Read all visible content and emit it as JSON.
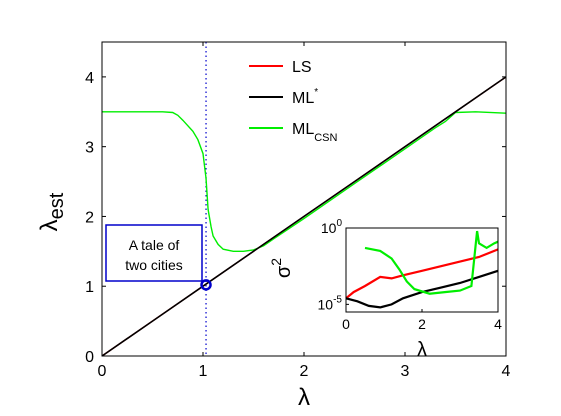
{
  "chart_data": [
    {
      "type": "line",
      "xlabel": "λ",
      "ylabel": "λ",
      "ylabel_sub": "est",
      "xlim": [
        0,
        4
      ],
      "ylim": [
        0,
        4.5
      ],
      "xticks": [
        "0",
        "1",
        "2",
        "3",
        "4"
      ],
      "yticks": [
        "0",
        "1",
        "2",
        "3",
        "4"
      ],
      "grid": false,
      "legend_placement": "top-center",
      "reference_line": {
        "x": 1.03,
        "style": "dotted",
        "color": "#0000cc"
      },
      "annotation": {
        "line1": "A tale of",
        "line2": "two cities",
        "marker_x": 1.03,
        "marker_y": 1.02,
        "color": "#0000cc"
      },
      "series": [
        {
          "name": "LS",
          "color": "#ff0000",
          "x": [
            0,
            0.5,
            1,
            1.5,
            2,
            2.5,
            3,
            3.5,
            4
          ],
          "y": [
            0,
            0.5,
            1.0,
            1.5,
            2.0,
            2.5,
            3.0,
            3.5,
            4.0
          ]
        },
        {
          "name": "ML",
          "name_sup": "*",
          "color": "#000000",
          "x": [
            0,
            0.5,
            1,
            1.5,
            2,
            2.5,
            3,
            3.5,
            4
          ],
          "y": [
            0,
            0.5,
            1.0,
            1.5,
            2.0,
            2.5,
            3.0,
            3.5,
            4.0
          ]
        },
        {
          "name": "ML",
          "name_sub": "CSN",
          "color": "#00ee00",
          "x": [
            0,
            0.6,
            0.7,
            0.75,
            0.8,
            0.85,
            0.9,
            0.95,
            1.0,
            1.03,
            1.05,
            1.08,
            1.1,
            1.15,
            1.2,
            1.3,
            1.4,
            1.5,
            1.6,
            1.7,
            2.0,
            2.5,
            3.0,
            3.3,
            3.4,
            3.5,
            3.7,
            4.0
          ],
          "y": [
            3.5,
            3.5,
            3.49,
            3.45,
            3.38,
            3.3,
            3.22,
            3.1,
            2.9,
            2.55,
            2.1,
            1.85,
            1.72,
            1.6,
            1.53,
            1.5,
            1.5,
            1.52,
            1.58,
            1.68,
            1.97,
            2.47,
            2.97,
            3.27,
            3.36,
            3.49,
            3.5,
            3.48
          ]
        }
      ]
    },
    {
      "type": "line",
      "role": "inset",
      "placement": "bottom-right",
      "xlabel": "λ",
      "ylabel": "σ",
      "ylabel_sup": "2",
      "xlim": [
        0,
        4
      ],
      "ylim_log10": [
        -5.5,
        0
      ],
      "yscale": "log",
      "xticks": [
        "0",
        "2",
        "4"
      ],
      "ytick_base": "10",
      "ytick_exponents": [
        "0",
        "-5"
      ],
      "grid": false,
      "series": [
        {
          "name": "LS",
          "color": "#ff0000",
          "x": [
            0,
            0.2,
            0.5,
            0.9,
            1.2,
            1.5,
            2.0,
            2.5,
            3.0,
            3.5,
            4.0
          ],
          "log10_y": [
            -4.6,
            -4.2,
            -3.8,
            -3.2,
            -3.3,
            -3.1,
            -2.8,
            -2.5,
            -2.2,
            -1.9,
            -1.4
          ]
        },
        {
          "name": "ML*",
          "color": "#000000",
          "x": [
            0,
            0.3,
            0.6,
            0.9,
            1.2,
            1.5,
            2.0,
            2.5,
            3.0,
            3.5,
            4.0
          ],
          "log10_y": [
            -4.6,
            -4.8,
            -5.1,
            -5.2,
            -5.0,
            -4.6,
            -4.2,
            -3.9,
            -3.6,
            -3.2,
            -2.8
          ]
        },
        {
          "name": "ML_CSN",
          "color": "#00ee00",
          "x": [
            0.5,
            0.9,
            1.2,
            1.4,
            1.6,
            1.8,
            2.2,
            2.6,
            3.0,
            3.3,
            3.45,
            3.5,
            3.7,
            3.9,
            4.0
          ],
          "log10_y": [
            -1.3,
            -1.5,
            -2.0,
            -2.7,
            -3.5,
            -4.0,
            -4.3,
            -4.2,
            -4.1,
            -3.8,
            -0.2,
            -1.0,
            -1.3,
            -1.0,
            -0.9
          ]
        }
      ]
    }
  ]
}
